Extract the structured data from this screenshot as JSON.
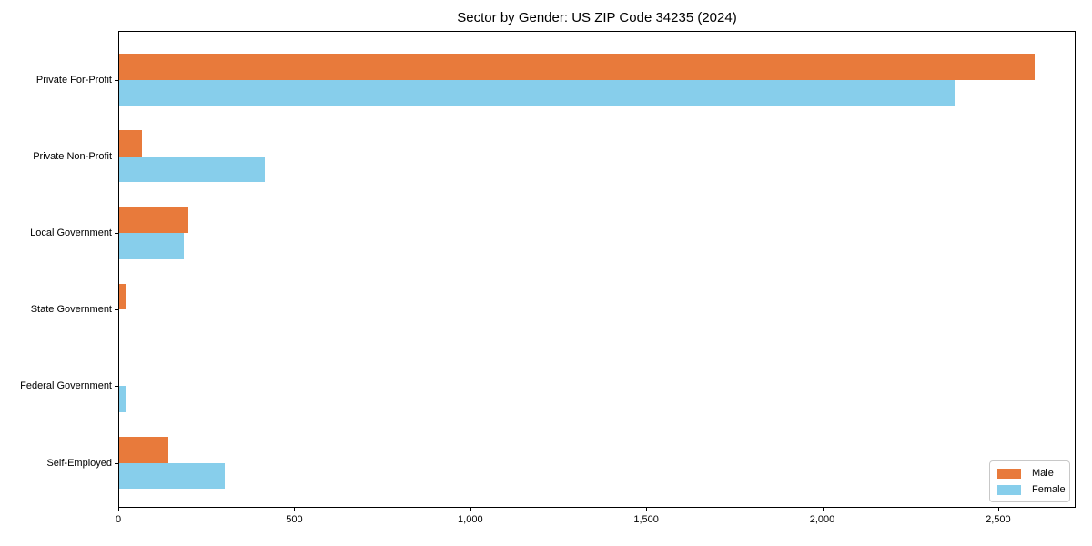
{
  "chart_data": {
    "type": "bar",
    "orientation": "horizontal",
    "title": "Sector by Gender: US ZIP Code 34235 (2024)",
    "categories": [
      "Private For-Profit",
      "Private Non-Profit",
      "Local Government",
      "State Government",
      "Federal Government",
      "Self-Employed"
    ],
    "series": [
      {
        "name": "Male",
        "color": "#e87a3b",
        "values": [
          2600,
          65,
          196,
          20,
          0,
          140
        ]
      },
      {
        "name": "Female",
        "color": "#87ceeb",
        "values": [
          2375,
          413,
          184,
          0,
          20,
          300
        ]
      }
    ],
    "xlabel": "",
    "ylabel": "",
    "xlim": [
      0,
      2720
    ],
    "xticks": [
      0,
      500,
      1000,
      1500,
      2000,
      2500
    ],
    "xtick_labels": [
      "0",
      "500",
      "1,000",
      "1,500",
      "2,000",
      "2,500"
    ],
    "grid": false,
    "legend_position": "lower right",
    "colors": {
      "male": "#e87a3b",
      "female": "#87ceeb",
      "spine": "#000000",
      "legend_border": "#c8c8c8"
    }
  }
}
